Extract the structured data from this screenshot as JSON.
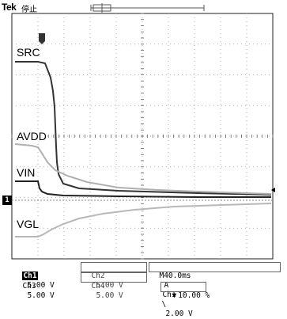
{
  "header": {
    "brand": "Tek",
    "run_status": "停止"
  },
  "channels": [
    {
      "label": "SRC"
    },
    {
      "label": "AVDD"
    },
    {
      "label": "VIN"
    },
    {
      "label": "VGL"
    }
  ],
  "readouts": {
    "ch1_name": "Ch1",
    "ch1_scale": "5.00 V",
    "ch2_name": "Ch2",
    "ch2_scale": "5.00 V",
    "ch3_name": "Ch3",
    "ch3_scale": "5.00 V",
    "ch4_name": "Ch4",
    "ch4_scale": "5.00 V",
    "timebase_prefix": "M",
    "timebase": "40.0ms",
    "trigger_mode": "A",
    "trigger_source": "Ch1",
    "trigger_slope": "\\",
    "trigger_level": "2.00 V",
    "trigger_position": "10.00 %"
  },
  "reference_marker": "1",
  "colors": {
    "trace_dark": "#333333",
    "trace_light": "#b8b8b8",
    "grid": "#9a9a9a"
  }
}
